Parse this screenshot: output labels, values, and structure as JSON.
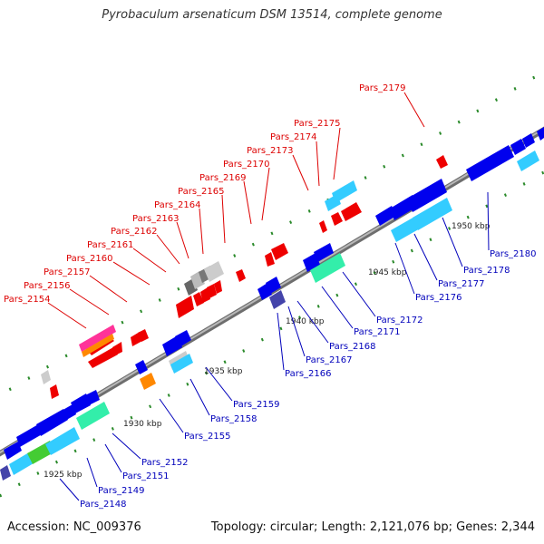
{
  "title": "Pyrobaculum arsenaticum DSM 13514, complete genome",
  "footer": {
    "accession": "Accession: NC_009376",
    "summary": "Topology: circular; Length: 2,121,076 bp; Genes: 2,344"
  },
  "scale_labels": [
    "1925 kbp",
    "1930 kbp",
    "1935 kbp",
    "1940 kbp",
    "1945 kbp",
    "1950 kbp"
  ],
  "colors": {
    "upper_strand_label": "#dd0000",
    "lower_strand_label": "#0000bb",
    "backbone": "#8a8a8a",
    "tick": "#2a8a2a"
  },
  "upper_genes": [
    "Pars_2154",
    "Pars_2156",
    "Pars_2157",
    "Pars_2160",
    "Pars_2161",
    "Pars_2162",
    "Pars_2163",
    "Pars_2164",
    "Pars_2165",
    "Pars_2169",
    "Pars_2170",
    "Pars_2173",
    "Pars_2174",
    "Pars_2175",
    "Pars_2179"
  ],
  "lower_genes": [
    "Pars_2148",
    "Pars_2149",
    "Pars_2151",
    "Pars_2152",
    "Pars_2155",
    "Pars_2158",
    "Pars_2159",
    "Pars_2166",
    "Pars_2167",
    "Pars_2168",
    "Pars_2171",
    "Pars_2172",
    "Pars_2176",
    "Pars_2177",
    "Pars_2178",
    "Pars_2180"
  ]
}
